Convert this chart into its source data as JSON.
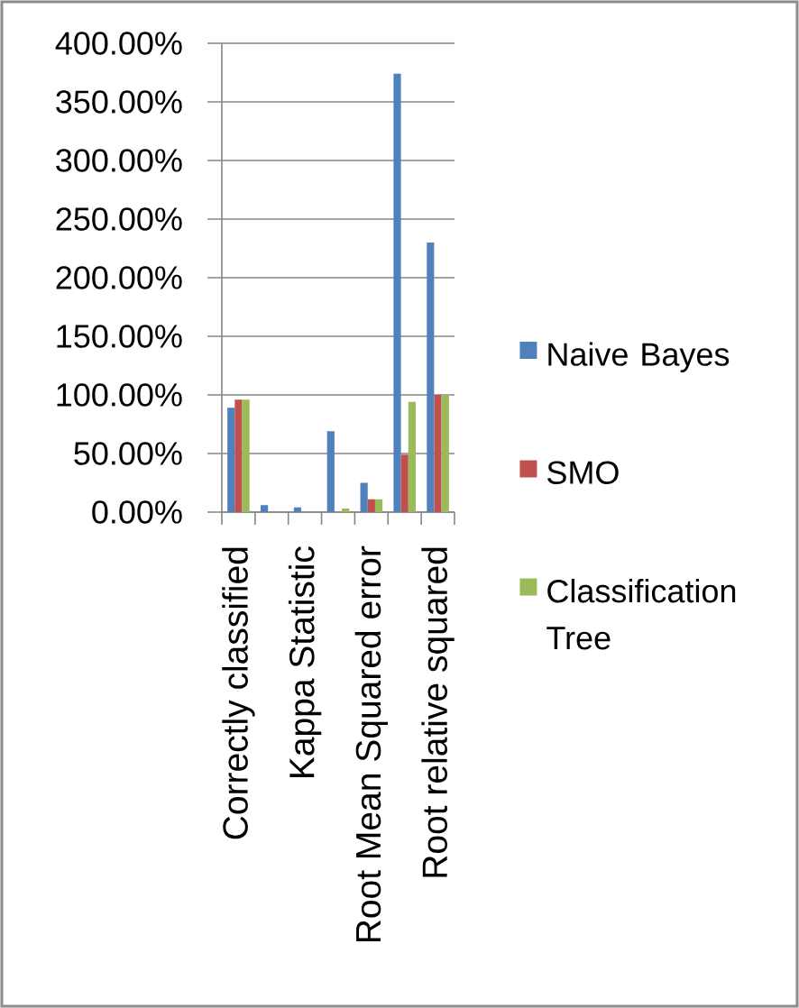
{
  "chart_data": {
    "type": "bar",
    "categories": [
      "Correctly classified",
      null,
      "Kappa Statistic",
      null,
      "Root Mean Squared error",
      null,
      "Root relative squared"
    ],
    "series": [
      {
        "name": "Naive Bayes",
        "color": "#4f81bd",
        "values": [
          89,
          6,
          4,
          69,
          25,
          374,
          230
        ]
      },
      {
        "name": "SMO",
        "color": "#c0504d",
        "values": [
          96,
          0,
          0,
          0,
          11,
          49,
          100
        ]
      },
      {
        "name": "Classification Tree",
        "color": "#9bbb59",
        "values": [
          96,
          0,
          0,
          3,
          11,
          94,
          100
        ]
      }
    ],
    "ylim": [
      0,
      400
    ],
    "yticks": [
      {
        "value": 0,
        "label": "0.00%"
      },
      {
        "value": 50,
        "label": "50.00%"
      },
      {
        "value": 100,
        "label": "100.00%"
      },
      {
        "value": 150,
        "label": "150.00%"
      },
      {
        "value": 200,
        "label": "200.00%"
      },
      {
        "value": 250,
        "label": "250.00%"
      },
      {
        "value": 300,
        "label": "300.00%"
      },
      {
        "value": 350,
        "label": "350.00%"
      },
      {
        "value": 400,
        "label": "400.00%"
      }
    ],
    "grid": "y",
    "legend": "right"
  }
}
